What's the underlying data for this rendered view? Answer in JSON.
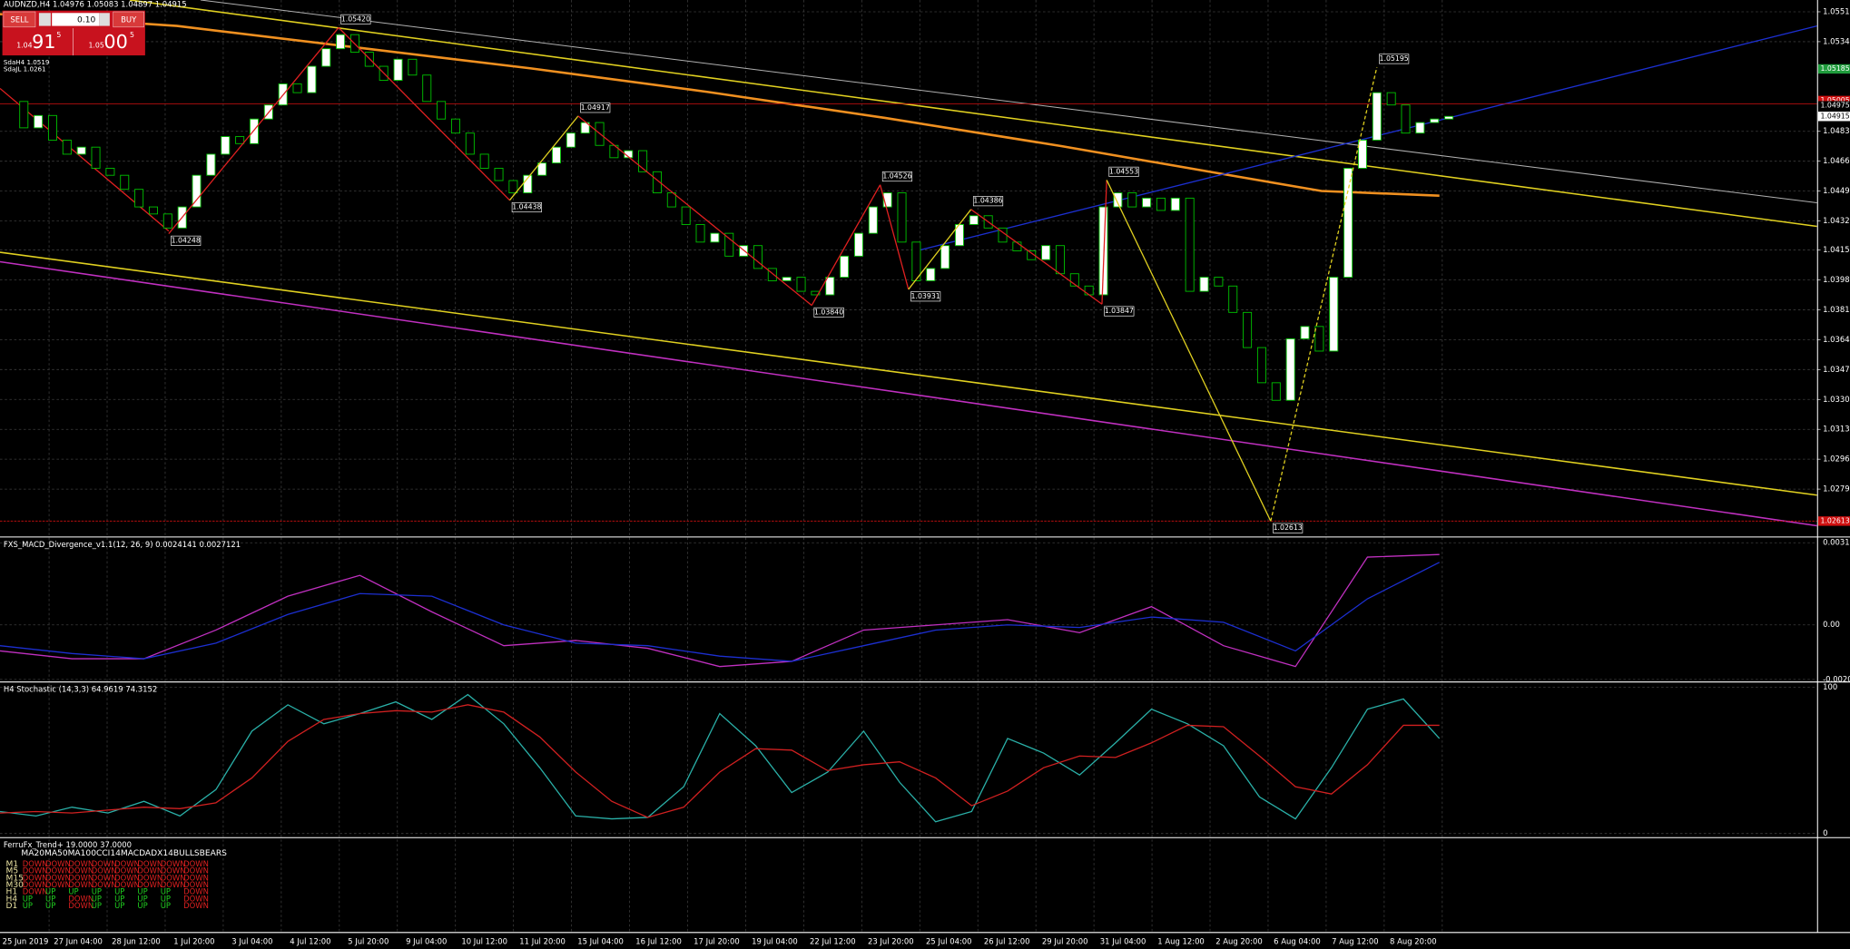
{
  "window": {
    "title": "AUDNZD,H4 1.04976 1.05083 1.04897 1.04915",
    "levels": [
      "SdaH4 1.0519",
      "SdaJL 1.0261"
    ]
  },
  "trade_panel": {
    "sell": "SELL",
    "buy": "BUY",
    "lot": "0.10",
    "bid": {
      "big": "1.04",
      "pips": "91",
      "point": "5"
    },
    "ask": {
      "big": "1.05",
      "pips": "00",
      "point": "5"
    }
  },
  "main_chart": {
    "ylim": [
      1.02526,
      1.05577
    ],
    "yticks": [
      {
        "value": 1.0551,
        "label": "1.05510"
      },
      {
        "value": 1.0534,
        "label": "1.05340"
      },
      {
        "value": 1.0483,
        "label": "1.04830"
      },
      {
        "value": 1.0466,
        "label": "1.04660"
      },
      {
        "value": 1.0449,
        "label": "1.04490"
      },
      {
        "value": 1.0432,
        "label": "1.04320"
      },
      {
        "value": 1.04155,
        "label": "1.04155"
      },
      {
        "value": 1.03985,
        "label": "1.03985"
      },
      {
        "value": 1.03815,
        "label": "1.03815"
      },
      {
        "value": 1.03645,
        "label": "1.03645"
      },
      {
        "value": 1.03475,
        "label": "1.03475"
      },
      {
        "value": 1.03305,
        "label": "1.03305"
      },
      {
        "value": 1.03135,
        "label": "1.03135"
      },
      {
        "value": 1.02965,
        "label": "1.02965"
      },
      {
        "value": 1.02795,
        "label": "1.02795"
      }
    ],
    "price_tags": [
      {
        "value": 1.05185,
        "label": "1.05185",
        "color": "#1f9b3c"
      },
      {
        "value": 1.05005,
        "label": "1.05005",
        "color": "#d01010"
      },
      {
        "value": 1.04975,
        "label": "1.04975",
        "color": "#000000"
      },
      {
        "value": 1.04915,
        "label": "1.04915",
        "color": "#ffffff"
      },
      {
        "value": 1.02613,
        "label": "1.02613",
        "color": "#d01010"
      }
    ],
    "candles": {
      "close": [
        1.05,
        1.0485,
        1.0492,
        1.0478,
        1.047,
        1.0474,
        1.0462,
        1.0458,
        1.045,
        1.044,
        1.0436,
        1.0428,
        1.044,
        1.0458,
        1.047,
        1.048,
        1.0476,
        1.049,
        1.0498,
        1.051,
        1.0505,
        1.052,
        1.053,
        1.0538,
        1.0528,
        1.052,
        1.0512,
        1.0524,
        1.0515,
        1.05,
        1.049,
        1.0482,
        1.047,
        1.0462,
        1.0455,
        1.0448,
        1.0458,
        1.0465,
        1.0474,
        1.0482,
        1.0488,
        1.0475,
        1.0468,
        1.0472,
        1.046,
        1.0448,
        1.044,
        1.043,
        1.042,
        1.0425,
        1.0412,
        1.0418,
        1.0405,
        1.0398,
        1.04,
        1.0392,
        1.039,
        1.04,
        1.0412,
        1.0425,
        1.044,
        1.0448,
        1.042,
        1.0398,
        1.0405,
        1.0418,
        1.043,
        1.0435,
        1.0428,
        1.042,
        1.0415,
        1.041,
        1.0418,
        1.0402,
        1.0395,
        1.039,
        1.044,
        1.0448,
        1.044,
        1.0445,
        1.0438,
        1.0445,
        1.0392,
        1.04,
        1.0395,
        1.038,
        1.036,
        1.034,
        1.033,
        1.0365,
        1.0372,
        1.0358,
        1.04,
        1.0462,
        1.0478,
        1.0505,
        1.0498,
        1.0482,
        1.0488,
        1.049,
        1.04915
      ]
    },
    "zigzag": [
      {
        "value": 1.04248,
        "label": "1.04248"
      },
      {
        "value": 1.0542,
        "label": "1.05420"
      },
      {
        "value": 1.04438,
        "label": "1.04438"
      },
      {
        "value": 1.04917,
        "label": "1.04917"
      },
      {
        "value": 1.0384,
        "label": "1.03840"
      },
      {
        "value": 1.04526,
        "label": "1.04526"
      },
      {
        "value": 1.03931,
        "label": "1.03931"
      },
      {
        "value": 1.04386,
        "label": "1.04386"
      },
      {
        "value": 1.03847,
        "label": "1.03847"
      },
      {
        "value": 1.04553,
        "label": "1.04553"
      },
      {
        "value": 1.02613,
        "label": "1.02613"
      },
      {
        "value": 1.05195,
        "label": "1.05195"
      }
    ]
  },
  "macd": {
    "title": "FXS_MACD_Divergence_v1.1(12, 26, 9) 0.0024141 0.0027121",
    "ylim": [
      -0.00217,
      0.00335
    ],
    "yticks": [
      {
        "value": 0.003151,
        "label": "0.0031510"
      },
      {
        "value": 0,
        "label": "0.00"
      },
      {
        "value": -0.002093,
        "label": "-0.002093"
      }
    ],
    "series": [
      {
        "color": "#c030c0",
        "values": [
          -0.001,
          -0.0013,
          -0.0013,
          -0.0002,
          0.0011,
          0.0019,
          0.0005,
          -0.0008,
          -0.0006,
          -0.0009,
          -0.0016,
          -0.0014,
          -0.0002,
          0,
          0.0002,
          -0.0003,
          0.0007,
          -0.0008,
          -0.0016,
          0.0026,
          0.0027
        ]
      },
      {
        "color": "#1c2fd0",
        "values": [
          -0.0008,
          -0.0011,
          -0.0013,
          -0.0007,
          0.0004,
          0.0012,
          0.0011,
          0,
          -0.0007,
          -0.0008,
          -0.0012,
          -0.0014,
          -0.0008,
          -0.0002,
          0,
          -0.0001,
          0.0003,
          0.0001,
          -0.001,
          0.001,
          0.0024
        ]
      }
    ]
  },
  "stochastic": {
    "title": "H4 Stochastic (14,3,3) 64.9619 74.3152",
    "ylim": [
      -2.4,
      102.4
    ],
    "yticks": [
      100,
      0
    ],
    "series": [
      {
        "color": "#2ab0a8",
        "values": [
          15,
          12,
          18,
          14,
          22,
          12,
          30,
          70,
          88,
          75,
          82,
          90,
          78,
          95,
          75,
          45,
          12,
          10,
          11,
          32,
          82,
          60,
          28,
          42,
          70,
          35,
          8,
          15,
          65,
          55,
          40,
          62,
          85,
          75,
          60,
          25,
          10,
          45,
          85,
          92,
          65
        ]
      },
      {
        "color": "#d02020",
        "values": [
          14,
          15,
          14,
          16,
          18,
          17,
          21,
          38,
          63,
          78,
          82,
          84,
          83,
          88,
          83,
          66,
          42,
          22,
          11,
          18,
          42,
          58,
          57,
          43,
          47,
          49,
          38,
          19,
          29,
          45,
          53,
          52,
          62,
          74,
          73,
          53,
          32,
          27,
          47,
          74,
          74
        ]
      }
    ]
  },
  "trend": {
    "title": "FerruFx_Trend+ 19.0000 37.0000",
    "header": "MA20MA50MA100CCI14MACDADX14BULLSBEARS",
    "rows": [
      {
        "tf": "M1",
        "cells": [
          "DOWN",
          "DOWN",
          "DOWN",
          "DOWN",
          "DOWN",
          "DOWN",
          "DOWN",
          "DOWN"
        ]
      },
      {
        "tf": "M5",
        "cells": [
          "DOWN",
          "DOWN",
          "DOWN",
          "DOWN",
          "DOWN",
          "DOWN",
          "DOWN",
          "DOWN"
        ]
      },
      {
        "tf": "M15",
        "cells": [
          "DOWN",
          "DOWN",
          "DOWN",
          "DOWN",
          "DOWN",
          "DOWN",
          "DOWN",
          "DOWN"
        ]
      },
      {
        "tf": "M30",
        "cells": [
          "DOWN",
          "DOWN",
          "DOWN",
          "DOWN",
          "DOWN",
          "DOWN",
          "DOWN",
          "DOWN"
        ]
      },
      {
        "tf": "H1",
        "cells": [
          "DOWN",
          "UP",
          "UP",
          "UP",
          "UP",
          "UP",
          "UP",
          "DOWN"
        ]
      },
      {
        "tf": "H4",
        "cells": [
          "UP",
          "UP",
          "DOWN",
          "UP",
          "UP",
          "UP",
          "UP",
          "DOWN"
        ]
      },
      {
        "tf": "D1",
        "cells": [
          "UP",
          "UP",
          "DOWN",
          "UP",
          "UP",
          "UP",
          "UP",
          "DOWN"
        ]
      }
    ]
  },
  "time_axis": [
    "25 Jun 2019",
    "27 Jun 04:00",
    "28 Jun 12:00",
    "1 Jul 20:00",
    "3 Jul 04:00",
    "4 Jul 12:00",
    "5 Jul 20:00",
    "9 Jul 04:00",
    "10 Jul 12:00",
    "11 Jul 20:00",
    "15 Jul 04:00",
    "16 Jul 12:00",
    "17 Jul 20:00",
    "19 Jul 04:00",
    "22 Jul 12:00",
    "23 Jul 20:00",
    "25 Jul 04:00",
    "26 Jul 12:00",
    "29 Jul 20:00",
    "31 Jul 04:00",
    "1 Aug 12:00",
    "2 Aug 20:00",
    "6 Aug 04:00",
    "7 Aug 12:00",
    "8 Aug 20:00"
  ]
}
